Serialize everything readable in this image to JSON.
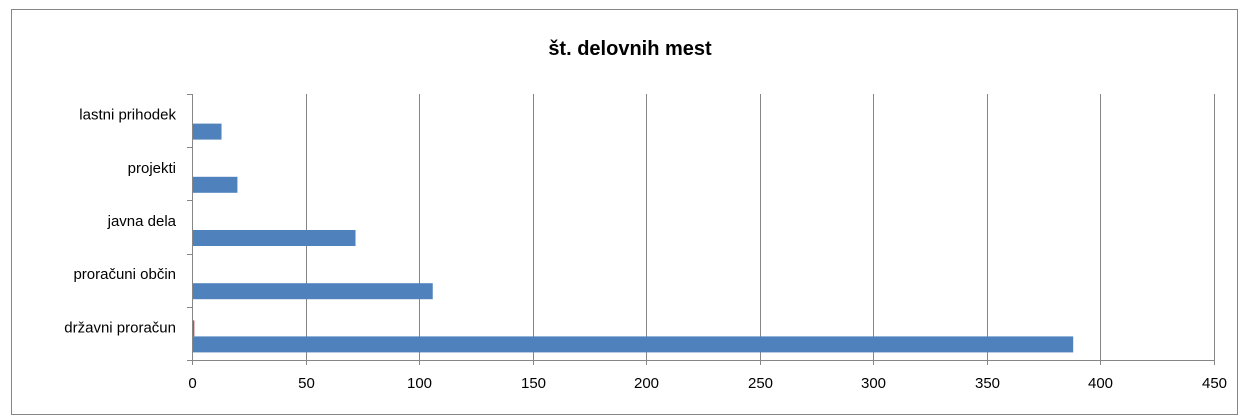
{
  "chart_data": {
    "type": "bar",
    "orientation": "horizontal",
    "title": "št. delovnih mest",
    "xlabel": "",
    "ylabel": "",
    "categories": [
      "lastni prihodek",
      "projekti",
      "javna dela",
      "proračuni občin",
      "državni proračun"
    ],
    "series": [
      {
        "color": "#4f81bd",
        "values": [
          13,
          20,
          72,
          106,
          388
        ]
      },
      {
        "color": "#c0504d",
        "values": [
          0,
          0,
          0,
          0,
          0.6
        ]
      }
    ],
    "xlim": [
      0,
      450
    ],
    "xticks": [
      "0",
      "50",
      "100",
      "150",
      "200",
      "250",
      "300",
      "350",
      "400",
      "450"
    ],
    "grid": "vertical",
    "legend": "none"
  }
}
